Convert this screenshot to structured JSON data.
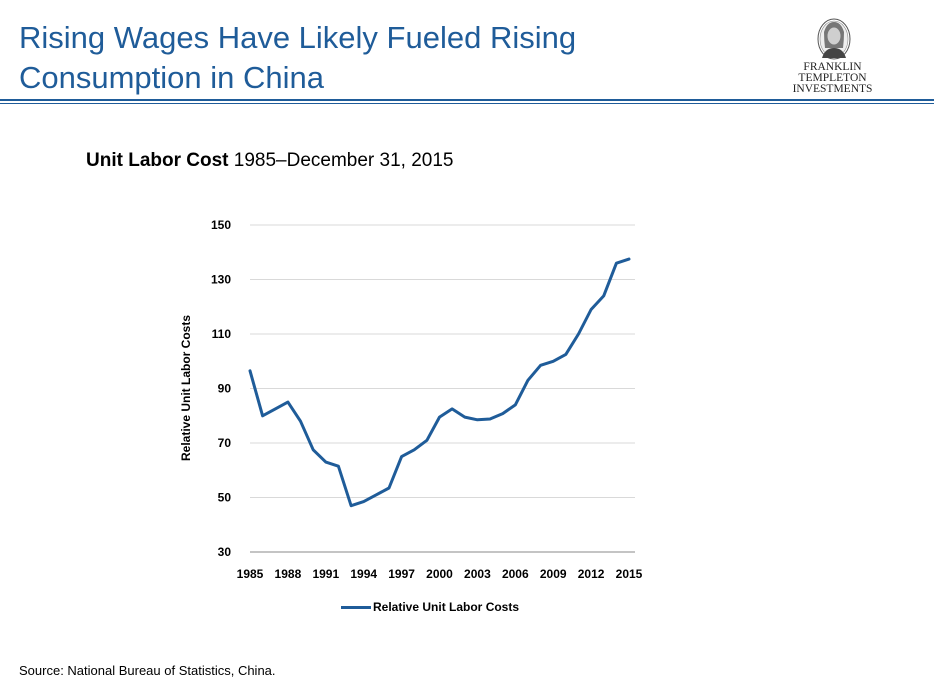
{
  "header": {
    "title_line1": "Rising Wages Have Likely Fueled Rising",
    "title_line2": "Consumption in China",
    "logo_line1": "FRANKLIN TEMPLETON",
    "logo_line2": "INVESTMENTS"
  },
  "chart_heading": {
    "bold": "Unit Labor Cost",
    "rest": "1985–December 31, 2015"
  },
  "source": "Source: National Bureau of Statistics, China.",
  "colors": {
    "brand": "#1f5c99",
    "series": "#1f5c99",
    "grid": "#d9d9d9"
  },
  "chart_data": {
    "type": "line",
    "title": "Unit Labor Cost",
    "subtitle": "1985–December 31, 2015",
    "xlabel": "",
    "ylabel": "Relative Unit Labor Costs",
    "ylim": [
      30,
      150
    ],
    "yticks": [
      150,
      130,
      110,
      90,
      70,
      50,
      30
    ],
    "xlim": [
      1985,
      2015
    ],
    "xticks": [
      1985,
      1988,
      1991,
      1994,
      1997,
      2000,
      2003,
      2006,
      2009,
      2012,
      2015
    ],
    "grid": true,
    "legend": "bottom",
    "series": [
      {
        "name": "Relative Unit Labor Costs",
        "x": [
          1985,
          1986,
          1987,
          1988,
          1989,
          1990,
          1991,
          1992,
          1993,
          1994,
          1995,
          1996,
          1997,
          1998,
          1999,
          2000,
          2001,
          2002,
          2003,
          2004,
          2005,
          2006,
          2007,
          2008,
          2009,
          2010,
          2011,
          2012,
          2013,
          2014,
          2015
        ],
        "values": [
          96.5,
          80,
          82.5,
          85,
          78,
          67.5,
          63,
          61.5,
          47,
          48.5,
          51,
          53.5,
          65,
          67.5,
          71,
          79.5,
          82.5,
          79.5,
          78.5,
          78.8,
          80.8,
          84,
          93,
          98.5,
          100,
          102.5,
          110,
          119,
          124,
          136,
          137.5
        ]
      }
    ]
  }
}
